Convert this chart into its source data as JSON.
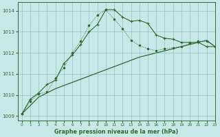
{
  "title": "Graphe pression niveau de la mer (hPa)",
  "bg_color": "#c8e8e8",
  "grid_color": "#a0c8c8",
  "line_color": "#2d6a2d",
  "xlim": [
    -0.5,
    23
  ],
  "ylim": [
    1008.8,
    1014.4
  ],
  "yticks": [
    1009,
    1010,
    1011,
    1012,
    1013,
    1014
  ],
  "xticks": [
    0,
    1,
    2,
    3,
    4,
    5,
    6,
    7,
    8,
    9,
    10,
    11,
    12,
    13,
    14,
    15,
    16,
    17,
    18,
    19,
    20,
    21,
    22,
    23
  ],
  "series1_x": [
    0,
    1,
    2,
    3,
    4,
    5,
    6,
    7,
    8,
    9,
    10,
    11,
    12,
    13,
    14,
    15,
    16,
    17,
    18,
    19,
    20,
    21,
    22,
    23
  ],
  "series1_y": [
    1009.1,
    1009.8,
    1010.1,
    1010.5,
    1010.7,
    1011.5,
    1011.9,
    1012.4,
    1013.0,
    1013.35,
    1014.05,
    1014.05,
    1013.7,
    1013.5,
    1013.55,
    1013.4,
    1012.85,
    1012.7,
    1012.65,
    1012.5,
    1012.5,
    1012.5,
    1012.3,
    1012.3
  ],
  "series2_x": [
    0,
    1,
    2,
    3,
    4,
    5,
    6,
    7,
    8,
    9,
    10,
    11,
    12,
    13,
    14,
    15,
    16,
    17,
    18,
    19,
    20,
    21,
    22,
    23
  ],
  "series2_y": [
    1009.1,
    1009.7,
    1010.05,
    1010.15,
    1010.8,
    1011.3,
    1012.0,
    1012.55,
    1013.3,
    1013.8,
    1014.05,
    1013.6,
    1013.15,
    1012.6,
    1012.35,
    1012.2,
    1012.1,
    1012.2,
    1012.25,
    1012.3,
    1012.45,
    1012.55,
    1012.55,
    1012.3
  ],
  "series3_x": [
    0,
    1,
    2,
    3,
    4,
    5,
    6,
    7,
    8,
    9,
    10,
    11,
    12,
    13,
    14,
    15,
    16,
    17,
    18,
    19,
    20,
    21,
    22,
    23
  ],
  "series3_y": [
    1009.1,
    1009.5,
    1009.9,
    1010.1,
    1010.3,
    1010.45,
    1010.6,
    1010.75,
    1010.9,
    1011.05,
    1011.2,
    1011.35,
    1011.5,
    1011.65,
    1011.8,
    1011.9,
    1012.0,
    1012.1,
    1012.2,
    1012.3,
    1012.4,
    1012.5,
    1012.6,
    1012.3
  ]
}
